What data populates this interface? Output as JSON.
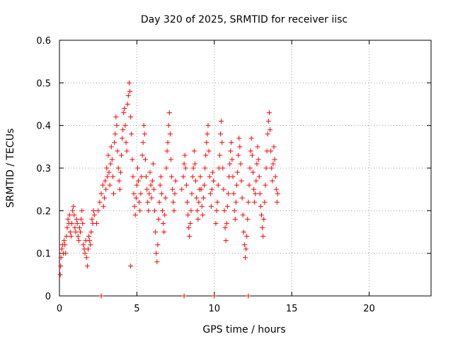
{
  "chart_data": {
    "type": "scatter",
    "title": "Day 320 of 2025, SRMTID for receiver iisc",
    "xlabel": "GPS time / hours",
    "ylabel": "SRMTID / TECUs",
    "xlim": [
      0,
      24
    ],
    "ylim": [
      0,
      0.6
    ],
    "x_ticks": [
      0,
      5,
      10,
      15,
      20
    ],
    "x_tick_labels": [
      "0",
      "5",
      "10",
      "15",
      "20"
    ],
    "y_ticks": [
      0,
      0.1,
      0.2,
      0.3,
      0.4,
      0.5,
      0.6
    ],
    "y_tick_labels": [
      "0",
      "0.1",
      "0.2",
      "0.3",
      "0.4",
      "0.5",
      "0.6"
    ],
    "grid": true,
    "marker": "+",
    "color": "#ff0000",
    "series": [
      {
        "name": "SRMTID",
        "points": [
          [
            0.05,
            0.05
          ],
          [
            0.08,
            0.07
          ],
          [
            0.1,
            0.09
          ],
          [
            0.15,
            0.11
          ],
          [
            0.2,
            0.12
          ],
          [
            0.25,
            0.1
          ],
          [
            0.3,
            0.13
          ],
          [
            0.35,
            0.12
          ],
          [
            0.4,
            0.1
          ],
          [
            0.45,
            0.14
          ],
          [
            0.5,
            0.16
          ],
          [
            0.55,
            0.18
          ],
          [
            0.6,
            0.17
          ],
          [
            0.65,
            0.19
          ],
          [
            0.7,
            0.15
          ],
          [
            0.75,
            0.14
          ],
          [
            0.8,
            0.17
          ],
          [
            0.85,
            0.2
          ],
          [
            0.9,
            0.21
          ],
          [
            0.95,
            0.19
          ],
          [
            1.0,
            0.16
          ],
          [
            1.05,
            0.15
          ],
          [
            1.1,
            0.18
          ],
          [
            1.15,
            0.17
          ],
          [
            1.2,
            0.14
          ],
          [
            1.25,
            0.13
          ],
          [
            1.3,
            0.16
          ],
          [
            1.35,
            0.15
          ],
          [
            1.4,
            0.18
          ],
          [
            1.45,
            0.2
          ],
          [
            1.5,
            0.17
          ],
          [
            1.55,
            0.12
          ],
          [
            1.6,
            0.11
          ],
          [
            1.65,
            0.1
          ],
          [
            1.7,
            0.13
          ],
          [
            1.75,
            0.09
          ],
          [
            1.8,
            0.07
          ],
          [
            1.85,
            0.11
          ],
          [
            1.9,
            0.14
          ],
          [
            1.95,
            0.13
          ],
          [
            2.0,
            0.12
          ],
          [
            2.05,
            0.15
          ],
          [
            2.1,
            0.18
          ],
          [
            2.15,
            0.17
          ],
          [
            2.2,
            0.2
          ],
          [
            2.25,
            0.19
          ],
          [
            2.4,
            0.17
          ],
          [
            2.5,
            0.2
          ],
          [
            2.6,
            0.22
          ],
          [
            2.7,
            0.24
          ],
          [
            2.8,
            0.26
          ],
          [
            2.85,
            0.21
          ],
          [
            2.9,
            0.23
          ],
          [
            2.95,
            0.27
          ],
          [
            3.0,
            0.25
          ],
          [
            3.05,
            0.3
          ],
          [
            3.1,
            0.28
          ],
          [
            3.15,
            0.33
          ],
          [
            3.2,
            0.29
          ],
          [
            3.25,
            0.26
          ],
          [
            3.3,
            0.31
          ],
          [
            3.35,
            0.35
          ],
          [
            3.4,
            0.32
          ],
          [
            3.45,
            0.28
          ],
          [
            3.5,
            0.24
          ],
          [
            3.55,
            0.36
          ],
          [
            3.6,
            0.38
          ],
          [
            3.65,
            0.42
          ],
          [
            3.7,
            0.4
          ],
          [
            3.75,
            0.34
          ],
          [
            3.8,
            0.3
          ],
          [
            3.85,
            0.27
          ],
          [
            3.9,
            0.25
          ],
          [
            3.95,
            0.29
          ],
          [
            4.0,
            0.33
          ],
          [
            4.05,
            0.37
          ],
          [
            4.1,
            0.39
          ],
          [
            4.15,
            0.43
          ],
          [
            4.2,
            0.44
          ],
          [
            4.25,
            0.4
          ],
          [
            4.3,
            0.36
          ],
          [
            4.35,
            0.34
          ],
          [
            4.4,
            0.45
          ],
          [
            4.45,
            0.47
          ],
          [
            4.5,
            0.5
          ],
          [
            4.55,
            0.48
          ],
          [
            4.6,
            0.42
          ],
          [
            4.65,
            0.38
          ],
          [
            4.7,
            0.32
          ],
          [
            4.75,
            0.28
          ],
          [
            4.8,
            0.24
          ],
          [
            4.85,
            0.21
          ],
          [
            4.9,
            0.19
          ],
          [
            4.95,
            0.23
          ],
          [
            5.0,
            0.26
          ],
          [
            5.05,
            0.3
          ],
          [
            5.1,
            0.27
          ],
          [
            5.15,
            0.22
          ],
          [
            5.2,
            0.2
          ],
          [
            5.25,
            0.24
          ],
          [
            5.3,
            0.28
          ],
          [
            5.35,
            0.33
          ],
          [
            5.4,
            0.36
          ],
          [
            5.45,
            0.4
          ],
          [
            5.5,
            0.38
          ],
          [
            5.55,
            0.32
          ],
          [
            5.6,
            0.28
          ],
          [
            5.65,
            0.25
          ],
          [
            5.7,
            0.22
          ],
          [
            5.75,
            0.2
          ],
          [
            5.8,
            0.24
          ],
          [
            5.85,
            0.29
          ],
          [
            5.9,
            0.26
          ],
          [
            5.95,
            0.23
          ],
          [
            6.0,
            0.27
          ],
          [
            6.05,
            0.31
          ],
          [
            6.1,
            0.25
          ],
          [
            6.15,
            0.2
          ],
          [
            6.2,
            0.15
          ],
          [
            6.25,
            0.1
          ],
          [
            6.3,
            0.08
          ],
          [
            6.35,
            0.12
          ],
          [
            6.4,
            0.18
          ],
          [
            6.45,
            0.22
          ],
          [
            6.5,
            0.26
          ],
          [
            6.55,
            0.28
          ],
          [
            6.6,
            0.24
          ],
          [
            6.65,
            0.2
          ],
          [
            6.7,
            0.17
          ],
          [
            6.75,
            0.15
          ],
          [
            6.8,
            0.19
          ],
          [
            6.85,
            0.23
          ],
          [
            6.9,
            0.3
          ],
          [
            6.95,
            0.34
          ],
          [
            7.0,
            0.36
          ],
          [
            7.05,
            0.4
          ],
          [
            7.1,
            0.43
          ],
          [
            7.15,
            0.38
          ],
          [
            7.2,
            0.32
          ],
          [
            7.25,
            0.28
          ],
          [
            7.3,
            0.25
          ],
          [
            7.35,
            0.22
          ],
          [
            7.4,
            0.2
          ],
          [
            7.45,
            0.24
          ],
          [
            7.5,
            0.27
          ],
          [
            7.9,
            0.25
          ],
          [
            8.0,
            0.28
          ],
          [
            8.05,
            0.31
          ],
          [
            8.1,
            0.33
          ],
          [
            8.15,
            0.3
          ],
          [
            8.2,
            0.26
          ],
          [
            8.25,
            0.22
          ],
          [
            8.3,
            0.19
          ],
          [
            8.35,
            0.16
          ],
          [
            8.4,
            0.14
          ],
          [
            8.45,
            0.17
          ],
          [
            8.5,
            0.2
          ],
          [
            8.55,
            0.24
          ],
          [
            8.6,
            0.28
          ],
          [
            8.65,
            0.3
          ],
          [
            8.7,
            0.34
          ],
          [
            8.75,
            0.31
          ],
          [
            8.8,
            0.27
          ],
          [
            8.85,
            0.23
          ],
          [
            8.9,
            0.2
          ],
          [
            8.95,
            0.18
          ],
          [
            9.0,
            0.22
          ],
          [
            9.05,
            0.25
          ],
          [
            9.1,
            0.28
          ],
          [
            9.15,
            0.25
          ],
          [
            9.2,
            0.21
          ],
          [
            9.25,
            0.19
          ],
          [
            9.3,
            0.23
          ],
          [
            9.35,
            0.26
          ],
          [
            9.4,
            0.3
          ],
          [
            9.45,
            0.33
          ],
          [
            9.5,
            0.36
          ],
          [
            9.55,
            0.38
          ],
          [
            9.6,
            0.4
          ],
          [
            9.65,
            0.34
          ],
          [
            9.7,
            0.28
          ],
          [
            9.75,
            0.24
          ],
          [
            9.8,
            0.21
          ],
          [
            9.85,
            0.25
          ],
          [
            9.9,
            0.29
          ],
          [
            9.95,
            0.27
          ],
          [
            10.1,
            0.17
          ],
          [
            10.15,
            0.2
          ],
          [
            10.2,
            0.22
          ],
          [
            10.25,
            0.26
          ],
          [
            10.3,
            0.3
          ],
          [
            10.35,
            0.33
          ],
          [
            10.4,
            0.38
          ],
          [
            10.45,
            0.41
          ],
          [
            10.5,
            0.36
          ],
          [
            10.55,
            0.3
          ],
          [
            10.6,
            0.25
          ],
          [
            10.65,
            0.2
          ],
          [
            10.7,
            0.16
          ],
          [
            10.75,
            0.13
          ],
          [
            10.8,
            0.17
          ],
          [
            10.85,
            0.21
          ],
          [
            10.9,
            0.24
          ],
          [
            10.95,
            0.28
          ],
          [
            11.0,
            0.31
          ],
          [
            11.05,
            0.34
          ],
          [
            11.1,
            0.36
          ],
          [
            11.15,
            0.32
          ],
          [
            11.2,
            0.28
          ],
          [
            11.25,
            0.24
          ],
          [
            11.3,
            0.2
          ],
          [
            11.35,
            0.18
          ],
          [
            11.4,
            0.22
          ],
          [
            11.45,
            0.26
          ],
          [
            11.5,
            0.29
          ],
          [
            11.55,
            0.33
          ],
          [
            11.6,
            0.37
          ],
          [
            11.65,
            0.35
          ],
          [
            11.7,
            0.31
          ],
          [
            11.75,
            0.27
          ],
          [
            11.8,
            0.23
          ],
          [
            11.85,
            0.19
          ],
          [
            11.9,
            0.15
          ],
          [
            11.95,
            0.12
          ],
          [
            12.0,
            0.09
          ],
          [
            12.05,
            0.11
          ],
          [
            12.1,
            0.14
          ],
          [
            12.15,
            0.18
          ],
          [
            12.2,
            0.22
          ],
          [
            12.25,
            0.26
          ],
          [
            12.3,
            0.3
          ],
          [
            12.35,
            0.34
          ],
          [
            12.4,
            0.37
          ],
          [
            12.45,
            0.33
          ],
          [
            12.5,
            0.29
          ],
          [
            12.55,
            0.25
          ],
          [
            12.6,
            0.22
          ],
          [
            12.65,
            0.24
          ],
          [
            12.7,
            0.27
          ],
          [
            12.75,
            0.31
          ],
          [
            12.8,
            0.35
          ],
          [
            12.85,
            0.32
          ],
          [
            12.9,
            0.28
          ],
          [
            12.95,
            0.24
          ],
          [
            13.0,
            0.21
          ],
          [
            13.05,
            0.19
          ],
          [
            13.1,
            0.16
          ],
          [
            13.15,
            0.14
          ],
          [
            13.2,
            0.18
          ],
          [
            13.25,
            0.22
          ],
          [
            13.3,
            0.26
          ],
          [
            13.35,
            0.3
          ],
          [
            13.4,
            0.34
          ],
          [
            13.45,
            0.38
          ],
          [
            13.5,
            0.41
          ],
          [
            13.55,
            0.43
          ],
          [
            13.6,
            0.39
          ],
          [
            13.65,
            0.34
          ],
          [
            13.7,
            0.3
          ],
          [
            13.75,
            0.27
          ],
          [
            13.8,
            0.31
          ],
          [
            13.85,
            0.35
          ],
          [
            13.9,
            0.32
          ],
          [
            13.95,
            0.28
          ],
          [
            14.0,
            0.25
          ],
          [
            14.05,
            0.22
          ],
          [
            14.1,
            0.24
          ]
        ]
      }
    ],
    "isolated_points": [
      [
        4.6,
        0.07
      ],
      [
        8.05,
        0.0
      ],
      [
        2.7,
        0.0
      ],
      [
        10.0,
        0.0
      ],
      [
        12.2,
        0.0
      ]
    ]
  }
}
